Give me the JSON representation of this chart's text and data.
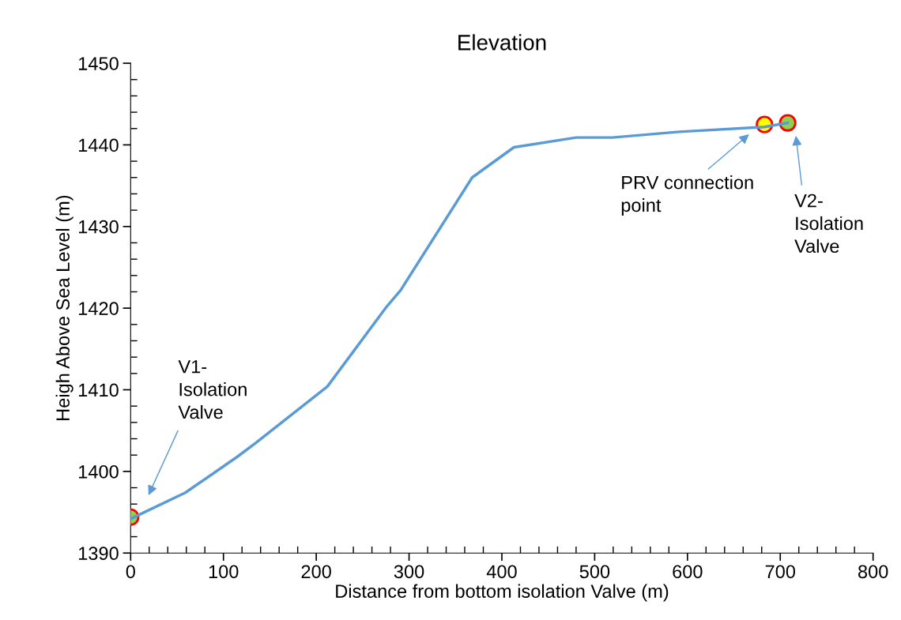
{
  "chart_data": {
    "type": "line",
    "title": "Elevation",
    "xlabel": "Distance from bottom isolation Valve (m)",
    "ylabel": "Heigh Above Sea Level (m)",
    "xlim": [
      0,
      800
    ],
    "xticks": [
      0,
      100,
      200,
      300,
      400,
      500,
      600,
      700,
      800
    ],
    "ylim": [
      1390,
      1450
    ],
    "yticks": [
      1390,
      1400,
      1410,
      1420,
      1430,
      1440,
      1450
    ],
    "grid": false,
    "series": [
      {
        "color": "#5b9bd5",
        "marker": "none",
        "x": [
          0,
          59,
          115,
          135,
          212,
          276,
          291,
          368,
          413,
          480,
          519,
          591,
          683,
          708
        ],
        "values": [
          1394.2,
          1397.4,
          1401.8,
          1403.5,
          1410.4,
          1420.2,
          1422.2,
          1436.0,
          1439.7,
          1440.9,
          1440.9,
          1441.6,
          1442.2,
          1442.7
        ]
      },
      {
        "type": "scatter",
        "color": "#92d050",
        "marker": "circle",
        "x": [
          0,
          708
        ],
        "values": [
          1394.4,
          1442.7
        ]
      },
      {
        "type": "scatter",
        "color": "#ffff00",
        "marker": "circle",
        "x": [
          683
        ],
        "values": [
          1442.5
        ]
      }
    ],
    "annotations": [
      "V1-\nIsolation\nValve",
      "PRV connection\npoint",
      "V2-\nIsolation\nValve"
    ]
  }
}
